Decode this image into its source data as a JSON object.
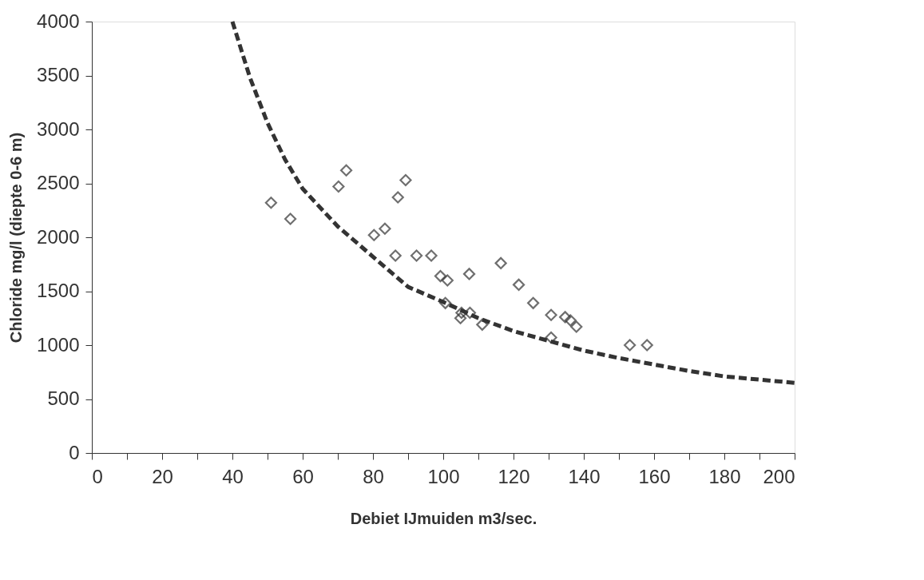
{
  "chart_data": {
    "type": "scatter",
    "xlabel": "Debiet IJmuiden m3/sec.",
    "ylabel": "Chloride mg/l (diepte 0-6 m)",
    "xlim": [
      0,
      200
    ],
    "ylim": [
      0,
      4000
    ],
    "xticks": [
      0,
      {
        "value": 10,
        "label": null
      },
      20,
      {
        "value": 30,
        "label": null
      },
      40,
      {
        "value": 50,
        "label": null
      },
      60,
      {
        "value": 70,
        "label": null
      },
      80,
      {
        "value": 90,
        "label": null
      },
      100,
      {
        "value": 110,
        "label": null
      },
      120,
      {
        "value": 130,
        "label": null
      },
      140,
      {
        "value": 150,
        "label": null
      },
      160,
      {
        "value": 170,
        "label": null
      },
      180,
      {
        "value": 190,
        "label": null
      },
      200
    ],
    "yticks": [
      0,
      500,
      1000,
      1500,
      2000,
      2500,
      3000,
      3500,
      4000
    ],
    "grid": false,
    "series": [
      {
        "color": "#333333",
        "marker": "diamond",
        "x": [
          51,
          56.5,
          70.2,
          72.4,
          87.1,
          89.3,
          80.3,
          83.4,
          86.4,
          92.4,
          96.6,
          99.2,
          101.2,
          100.6,
          107.4,
          116.4,
          121.5,
          125.6,
          130.7,
          134.7,
          136.2,
          137.9,
          105.2,
          104.9,
          107.6,
          111.1,
          130.7,
          153.1,
          158
        ],
        "values": [
          2320,
          2170,
          2470,
          2620,
          2370,
          2530,
          2020,
          2080,
          1830,
          1830,
          1830,
          1640,
          1600,
          1390,
          1660,
          1760,
          1560,
          1390,
          1280,
          1260,
          1230,
          1170,
          1300,
          1250,
          1300,
          1190,
          1070,
          1000,
          1000
        ]
      },
      {
        "type": "line",
        "color": "#333333",
        "line_style": "dashed",
        "marker": "none",
        "x": [
          40,
          45,
          50,
          55,
          60,
          70,
          80,
          90,
          100,
          110,
          120,
          130,
          140,
          150,
          160,
          170,
          180,
          190,
          200
        ],
        "values": [
          4000,
          3480,
          3060,
          2720,
          2450,
          2100,
          1820,
          1540,
          1400,
          1250,
          1130,
          1040,
          950,
          880,
          820,
          760,
          710,
          680,
          650
        ]
      }
    ]
  }
}
